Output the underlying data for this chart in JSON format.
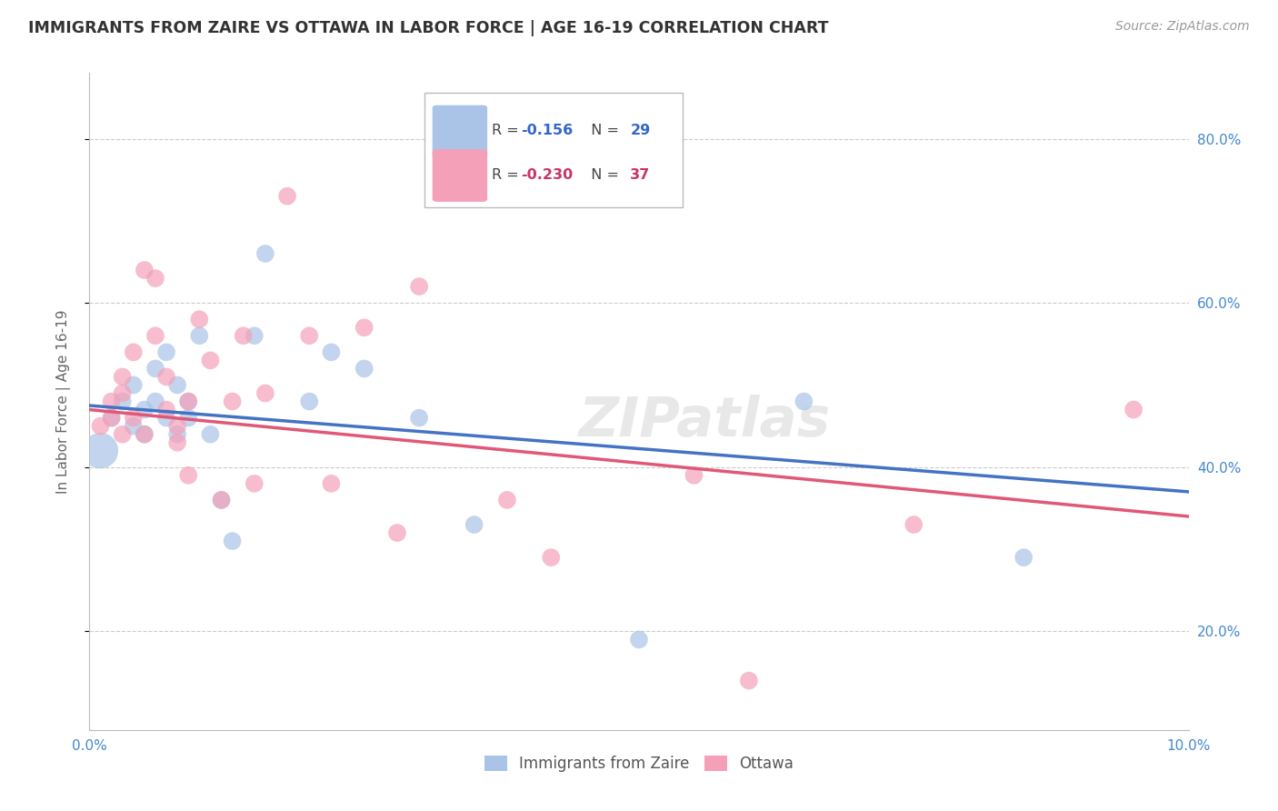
{
  "title": "IMMIGRANTS FROM ZAIRE VS OTTAWA IN LABOR FORCE | AGE 16-19 CORRELATION CHART",
  "source": "Source: ZipAtlas.com",
  "ylabel": "In Labor Force | Age 16-19",
  "xlim": [
    0.0,
    0.1
  ],
  "ylim": [
    0.08,
    0.88
  ],
  "xticks": [
    0.0,
    0.1
  ],
  "xticklabels": [
    "0.0%",
    "10.0%"
  ],
  "yticks_right": [
    0.2,
    0.4,
    0.6,
    0.8
  ],
  "yticklabels_right": [
    "20.0%",
    "40.0%",
    "60.0%",
    "80.0%"
  ],
  "legend_r_blue": "-0.156",
  "legend_n_blue": "29",
  "legend_r_pink": "-0.230",
  "legend_n_pink": "37",
  "blue_color": "#aac4e8",
  "pink_color": "#f4a0b8",
  "blue_line_color": "#4472c4",
  "pink_line_color": "#e05878",
  "background_color": "#ffffff",
  "grid_color": "#cccccc",
  "watermark": "ZIPatlas",
  "blue_line_y0": 0.475,
  "blue_line_y1": 0.37,
  "pink_line_y0": 0.47,
  "pink_line_y1": 0.34,
  "blue_x": [
    0.001,
    0.002,
    0.003,
    0.004,
    0.004,
    0.005,
    0.005,
    0.006,
    0.006,
    0.007,
    0.007,
    0.008,
    0.008,
    0.009,
    0.009,
    0.01,
    0.011,
    0.012,
    0.013,
    0.015,
    0.016,
    0.02,
    0.022,
    0.025,
    0.03,
    0.035,
    0.05,
    0.065,
    0.085
  ],
  "blue_y": [
    0.42,
    0.46,
    0.48,
    0.5,
    0.45,
    0.47,
    0.44,
    0.52,
    0.48,
    0.54,
    0.46,
    0.5,
    0.44,
    0.46,
    0.48,
    0.56,
    0.44,
    0.36,
    0.31,
    0.56,
    0.66,
    0.48,
    0.54,
    0.52,
    0.46,
    0.33,
    0.19,
    0.48,
    0.29
  ],
  "blue_sizes": [
    800,
    200,
    200,
    200,
    200,
    200,
    200,
    200,
    200,
    200,
    200,
    200,
    200,
    200,
    200,
    200,
    200,
    200,
    200,
    200,
    200,
    200,
    200,
    200,
    200,
    200,
    200,
    200,
    200
  ],
  "pink_x": [
    0.001,
    0.002,
    0.002,
    0.003,
    0.003,
    0.003,
    0.004,
    0.004,
    0.005,
    0.005,
    0.006,
    0.006,
    0.007,
    0.007,
    0.008,
    0.008,
    0.009,
    0.009,
    0.01,
    0.011,
    0.012,
    0.013,
    0.014,
    0.015,
    0.016,
    0.018,
    0.02,
    0.022,
    0.025,
    0.028,
    0.03,
    0.038,
    0.042,
    0.055,
    0.06,
    0.075,
    0.095
  ],
  "pink_y": [
    0.45,
    0.46,
    0.48,
    0.44,
    0.49,
    0.51,
    0.54,
    0.46,
    0.44,
    0.64,
    0.63,
    0.56,
    0.47,
    0.51,
    0.45,
    0.43,
    0.39,
    0.48,
    0.58,
    0.53,
    0.36,
    0.48,
    0.56,
    0.38,
    0.49,
    0.73,
    0.56,
    0.38,
    0.57,
    0.32,
    0.62,
    0.36,
    0.29,
    0.39,
    0.14,
    0.33,
    0.47
  ],
  "pink_sizes": [
    200,
    200,
    200,
    200,
    200,
    200,
    200,
    200,
    200,
    200,
    200,
    200,
    200,
    200,
    200,
    200,
    200,
    200,
    200,
    200,
    200,
    200,
    200,
    200,
    200,
    200,
    200,
    200,
    200,
    200,
    200,
    200,
    200,
    200,
    200,
    200,
    200
  ]
}
